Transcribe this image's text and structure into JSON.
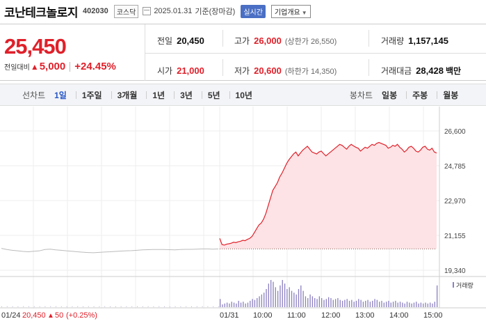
{
  "header": {
    "name": "코난테크놀로지",
    "code": "402030",
    "market": "코스닥",
    "date": "2025.01.31",
    "basis": "기준(장마감)",
    "live_label": "실시간",
    "company_info_label": "기업개요"
  },
  "quote": {
    "price": "25,450",
    "change_label": "전일대비",
    "change_arrow": "▲",
    "change": "5,000",
    "change_pct": "+24.45%",
    "prev_label": "전일",
    "prev_value": "20,450",
    "high_label": "고가",
    "high_value": "26,000",
    "upper_limit_note": "(상한가 26,550)",
    "volume_label": "거래량",
    "volume_value": "1,157,145",
    "open_label": "시가",
    "open_value": "21,000",
    "low_label": "저가",
    "low_value": "20,600",
    "lower_limit_note": "(하한가 14,350)",
    "amount_label": "거래대금",
    "amount_value": "28,428",
    "amount_unit": "백만"
  },
  "periods": {
    "line_chart_label": "선차트",
    "line_options": [
      "1일",
      "1주일",
      "3개월",
      "1년",
      "3년",
      "5년",
      "10년"
    ],
    "active": "1일",
    "candle_chart_label": "봉차트",
    "candle_options": [
      "일봉",
      "주봉",
      "월봉"
    ]
  },
  "chart_data": {
    "type": "area",
    "y_ticks": [
      "26,600",
      "24,785",
      "22,970",
      "21,155",
      "19,340"
    ],
    "ylim": [
      19340,
      26600
    ],
    "x_ticks": [
      "01/24",
      "01/31",
      "10:00",
      "11:00",
      "12:00",
      "13:00",
      "14:00",
      "15:00"
    ],
    "prev_day_note": {
      "date": "01/24",
      "price": "20,450",
      "arrow": "▲",
      "change": "50",
      "pct": "(+0.25%)"
    },
    "prev_baseline": 20450,
    "volume_legend": "거래량",
    "prev_day_series": [
      20480,
      20420,
      20380,
      20350,
      20320,
      20300,
      20330,
      20350,
      20420,
      20440,
      20400,
      20380,
      20350,
      20330,
      20300,
      20280,
      20260,
      20250,
      20270,
      20290,
      20300,
      20320,
      20340,
      20350,
      20360,
      20380,
      20400,
      20410,
      20420,
      20420,
      20420,
      20410,
      20400,
      20420,
      20430,
      20430,
      20440,
      20450,
      20450,
      20440,
      20450
    ],
    "today_series": [
      21000,
      20680,
      20650,
      20700,
      20720,
      20750,
      20800,
      20780,
      20820,
      20850,
      20900,
      20880,
      20950,
      21000,
      21100,
      21300,
      21500,
      21700,
      21800,
      22000,
      22300,
      22700,
      23100,
      23500,
      23700,
      23900,
      24200,
      24400,
      24650,
      24900,
      25100,
      25250,
      25400,
      25500,
      25300,
      25450,
      25600,
      25700,
      25800,
      25650,
      25500,
      25450,
      25400,
      25500,
      25550,
      25420,
      25300,
      25400,
      25500,
      25600,
      25700,
      25800,
      25900,
      25850,
      25750,
      25650,
      25800,
      25900,
      25820,
      25750,
      25700,
      25550,
      25650,
      25750,
      25700,
      25800,
      25900,
      25850,
      25950,
      26000,
      25950,
      25900,
      25850,
      25700,
      25750,
      25850,
      25800,
      25900,
      25750,
      25650,
      25500,
      25600,
      25750,
      25800,
      25700,
      25550,
      25500,
      25600,
      25750,
      25800,
      25650,
      25600,
      25700,
      25500,
      25450
    ],
    "today_volume": [
      9,
      3,
      4,
      5,
      4,
      6,
      5,
      4,
      7,
      5,
      6,
      4,
      5,
      7,
      9,
      8,
      10,
      12,
      14,
      16,
      20,
      26,
      30,
      28,
      22,
      18,
      24,
      30,
      26,
      20,
      22,
      18,
      16,
      14,
      20,
      24,
      18,
      12,
      10,
      14,
      12,
      10,
      9,
      12,
      10,
      8,
      9,
      11,
      10,
      8,
      9,
      10,
      8,
      7,
      8,
      9,
      7,
      8,
      6,
      7,
      9,
      8,
      6,
      7,
      8,
      6,
      7,
      9,
      8,
      6,
      7,
      5,
      6,
      7,
      5,
      6,
      7,
      5,
      6,
      5,
      4,
      6,
      5,
      4,
      5,
      6,
      4,
      5,
      4,
      5,
      4,
      5,
      4,
      6,
      24
    ],
    "prev_volume": [
      1,
      1,
      1,
      1,
      1,
      1,
      1,
      1,
      1,
      1,
      1,
      1,
      1,
      1,
      1,
      1,
      1,
      1,
      1,
      1,
      1,
      1,
      1,
      1,
      1,
      1,
      1,
      1,
      1,
      1,
      1,
      1,
      1,
      1,
      1,
      1,
      1,
      1,
      1,
      1,
      1
    ],
    "colors": {
      "up": "#e0202a",
      "fill": "#fde3e5",
      "prev_line": "#bbbbbb",
      "volume": "#8b7fc0"
    }
  }
}
